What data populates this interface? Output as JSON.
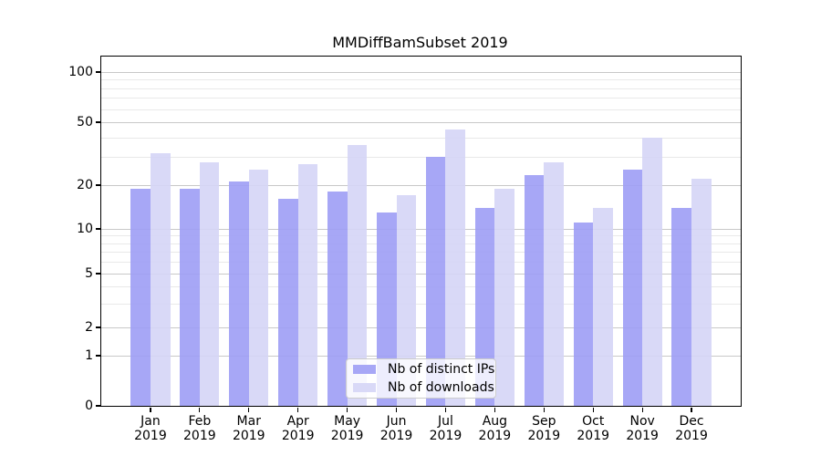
{
  "chart_data": {
    "type": "bar",
    "title": "MMDiffBamSubset 2019",
    "categories": [
      "Jan",
      "Feb",
      "Mar",
      "Apr",
      "May",
      "Jun",
      "Jul",
      "Aug",
      "Sep",
      "Oct",
      "Nov",
      "Dec"
    ],
    "year_label": "2019",
    "series": [
      {
        "name": "Nb of distinct IPs",
        "color": "#9d9df5",
        "values": [
          19,
          19,
          21,
          16,
          18,
          13,
          30,
          14,
          23,
          11,
          25,
          14
        ]
      },
      {
        "name": "Nb of downloads",
        "color": "#d5d5f6",
        "values": [
          32,
          28,
          25,
          27,
          36,
          17,
          45,
          19,
          28,
          14,
          40,
          22
        ]
      }
    ],
    "xlabel": "",
    "ylabel": "",
    "y_axis": {
      "scale": "symlog",
      "ticks": [
        0,
        1,
        2,
        5,
        10,
        20,
        50,
        100
      ],
      "minor_ticks": [
        3,
        4,
        6,
        7,
        8,
        9,
        30,
        40,
        60,
        70,
        80,
        90
      ],
      "ylim": [
        0,
        125
      ],
      "grid": true
    },
    "legend": {
      "position": "lower center"
    },
    "colors": {
      "grid_major": "#b0b0b0",
      "axis": "#000000",
      "background": "#ffffff"
    }
  }
}
